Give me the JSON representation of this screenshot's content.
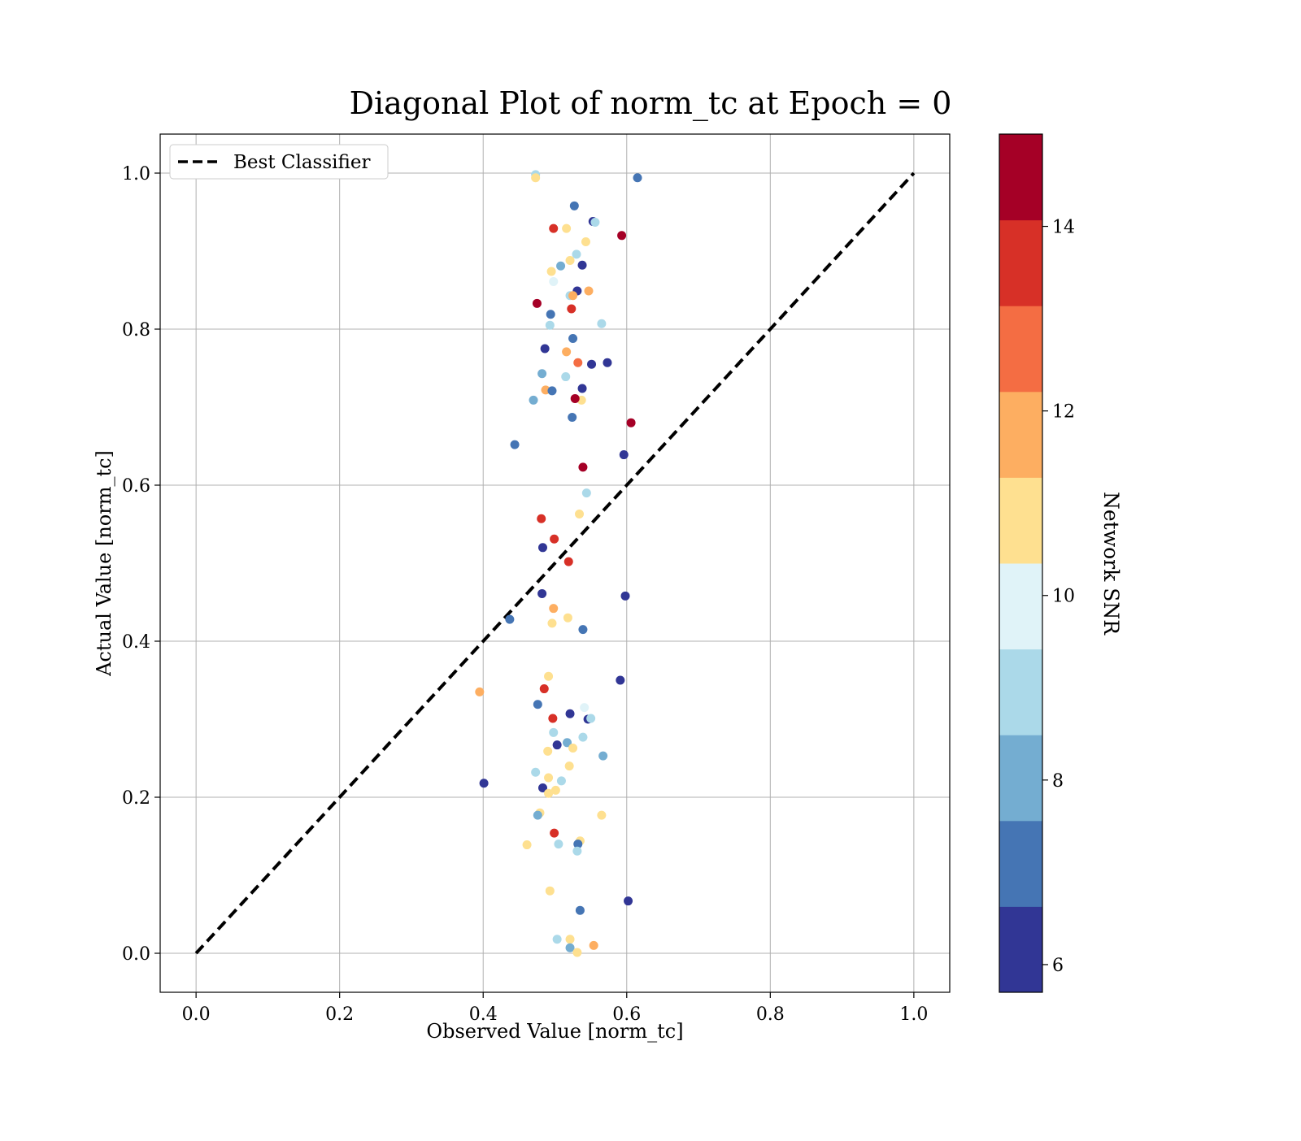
{
  "chart_data": {
    "type": "scatter",
    "title": "Diagonal Plot of norm_tc at Epoch = 0",
    "xlabel": "Observed Value [norm_tc]",
    "ylabel": "Actual Value [norm_tc]",
    "xlim": [
      -0.05,
      1.05
    ],
    "ylim": [
      -0.05,
      1.05
    ],
    "xticks": [
      0.0,
      0.2,
      0.4,
      0.6,
      0.8,
      1.0
    ],
    "yticks": [
      0.0,
      0.2,
      0.4,
      0.6,
      0.8,
      1.0
    ],
    "xtick_labels": [
      "0.0",
      "0.2",
      "0.4",
      "0.6",
      "0.8",
      "1.0"
    ],
    "ytick_labels": [
      "0.0",
      "0.2",
      "0.4",
      "0.6",
      "0.8",
      "1.0"
    ],
    "grid": true,
    "legend": {
      "position": "top-left",
      "entries": [
        {
          "label": "Best Classifier",
          "style": "dashed",
          "color": "#000000"
        }
      ]
    },
    "reference_line": {
      "label": "Best Classifier",
      "x": [
        0.0,
        1.0
      ],
      "y": [
        0.0,
        1.0
      ],
      "style": "dashed",
      "color": "#000000"
    },
    "colorbar": {
      "label": "Network SNR",
      "range": [
        5.7,
        15.0
      ],
      "ticks": [
        6,
        8,
        10,
        12,
        14
      ],
      "tick_labels": [
        "6",
        "8",
        "10",
        "12",
        "14"
      ],
      "colors": [
        "#313695",
        "#4575b4",
        "#74add1",
        "#abd9e9",
        "#e0f3f8",
        "#fee090",
        "#fdae61",
        "#f46d43",
        "#d73027",
        "#a50026"
      ]
    },
    "points": [
      {
        "x": 0.473,
        "y": 0.998,
        "snr": 9.0
      },
      {
        "x": 0.473,
        "y": 0.994,
        "snr": 10.6
      },
      {
        "x": 0.615,
        "y": 0.994,
        "snr": 7.2
      },
      {
        "x": 0.527,
        "y": 0.958,
        "snr": 7.2
      },
      {
        "x": 0.553,
        "y": 0.938,
        "snr": 6.2
      },
      {
        "x": 0.556,
        "y": 0.937,
        "snr": 9.0
      },
      {
        "x": 0.498,
        "y": 0.929,
        "snr": 13.5
      },
      {
        "x": 0.516,
        "y": 0.929,
        "snr": 10.6
      },
      {
        "x": 0.593,
        "y": 0.92,
        "snr": 14.6
      },
      {
        "x": 0.543,
        "y": 0.912,
        "snr": 10.6
      },
      {
        "x": 0.53,
        "y": 0.896,
        "snr": 9.0
      },
      {
        "x": 0.521,
        "y": 0.888,
        "snr": 10.6
      },
      {
        "x": 0.538,
        "y": 0.882,
        "snr": 6.2
      },
      {
        "x": 0.508,
        "y": 0.881,
        "snr": 8.0
      },
      {
        "x": 0.495,
        "y": 0.874,
        "snr": 10.6
      },
      {
        "x": 0.498,
        "y": 0.861,
        "snr": 9.8
      },
      {
        "x": 0.531,
        "y": 0.849,
        "snr": 6.2
      },
      {
        "x": 0.547,
        "y": 0.849,
        "snr": 11.6
      },
      {
        "x": 0.521,
        "y": 0.843,
        "snr": 9.0
      },
      {
        "x": 0.525,
        "y": 0.843,
        "snr": 11.6
      },
      {
        "x": 0.475,
        "y": 0.833,
        "snr": 14.6
      },
      {
        "x": 0.523,
        "y": 0.826,
        "snr": 13.5
      },
      {
        "x": 0.494,
        "y": 0.819,
        "snr": 7.2
      },
      {
        "x": 0.565,
        "y": 0.807,
        "snr": 9.0
      },
      {
        "x": 0.493,
        "y": 0.805,
        "snr": 9.0
      },
      {
        "x": 0.525,
        "y": 0.788,
        "snr": 7.2
      },
      {
        "x": 0.486,
        "y": 0.775,
        "snr": 6.2
      },
      {
        "x": 0.516,
        "y": 0.771,
        "snr": 11.6
      },
      {
        "x": 0.532,
        "y": 0.757,
        "snr": 12.6
      },
      {
        "x": 0.551,
        "y": 0.755,
        "snr": 6.2
      },
      {
        "x": 0.573,
        "y": 0.757,
        "snr": 6.2
      },
      {
        "x": 0.482,
        "y": 0.743,
        "snr": 8.0
      },
      {
        "x": 0.515,
        "y": 0.739,
        "snr": 9.0
      },
      {
        "x": 0.538,
        "y": 0.724,
        "snr": 6.2
      },
      {
        "x": 0.487,
        "y": 0.722,
        "snr": 11.6
      },
      {
        "x": 0.496,
        "y": 0.721,
        "snr": 7.2
      },
      {
        "x": 0.537,
        "y": 0.709,
        "snr": 10.6
      },
      {
        "x": 0.528,
        "y": 0.711,
        "snr": 14.6
      },
      {
        "x": 0.47,
        "y": 0.709,
        "snr": 8.0
      },
      {
        "x": 0.524,
        "y": 0.687,
        "snr": 7.2
      },
      {
        "x": 0.606,
        "y": 0.68,
        "snr": 14.6
      },
      {
        "x": 0.444,
        "y": 0.652,
        "snr": 7.2
      },
      {
        "x": 0.596,
        "y": 0.639,
        "snr": 6.2
      },
      {
        "x": 0.539,
        "y": 0.623,
        "snr": 14.6
      },
      {
        "x": 0.544,
        "y": 0.59,
        "snr": 9.0
      },
      {
        "x": 0.534,
        "y": 0.563,
        "snr": 10.6
      },
      {
        "x": 0.481,
        "y": 0.557,
        "snr": 13.5
      },
      {
        "x": 0.499,
        "y": 0.531,
        "snr": 13.5
      },
      {
        "x": 0.483,
        "y": 0.52,
        "snr": 6.2
      },
      {
        "x": 0.519,
        "y": 0.502,
        "snr": 13.5
      },
      {
        "x": 0.482,
        "y": 0.461,
        "snr": 6.2
      },
      {
        "x": 0.598,
        "y": 0.458,
        "snr": 6.2
      },
      {
        "x": 0.498,
        "y": 0.442,
        "snr": 11.6
      },
      {
        "x": 0.518,
        "y": 0.43,
        "snr": 10.6
      },
      {
        "x": 0.437,
        "y": 0.428,
        "snr": 7.2
      },
      {
        "x": 0.496,
        "y": 0.423,
        "snr": 10.6
      },
      {
        "x": 0.539,
        "y": 0.415,
        "snr": 7.2
      },
      {
        "x": 0.491,
        "y": 0.355,
        "snr": 10.6
      },
      {
        "x": 0.591,
        "y": 0.35,
        "snr": 6.2
      },
      {
        "x": 0.395,
        "y": 0.335,
        "snr": 11.6
      },
      {
        "x": 0.485,
        "y": 0.339,
        "snr": 13.5
      },
      {
        "x": 0.476,
        "y": 0.319,
        "snr": 7.2
      },
      {
        "x": 0.541,
        "y": 0.315,
        "snr": 9.8
      },
      {
        "x": 0.521,
        "y": 0.307,
        "snr": 6.2
      },
      {
        "x": 0.497,
        "y": 0.301,
        "snr": 13.5
      },
      {
        "x": 0.546,
        "y": 0.3,
        "snr": 6.2
      },
      {
        "x": 0.55,
        "y": 0.301,
        "snr": 9.0
      },
      {
        "x": 0.498,
        "y": 0.283,
        "snr": 9.0
      },
      {
        "x": 0.539,
        "y": 0.277,
        "snr": 9.0
      },
      {
        "x": 0.517,
        "y": 0.27,
        "snr": 8.0
      },
      {
        "x": 0.503,
        "y": 0.267,
        "snr": 6.2
      },
      {
        "x": 0.525,
        "y": 0.263,
        "snr": 10.6
      },
      {
        "x": 0.49,
        "y": 0.259,
        "snr": 10.6
      },
      {
        "x": 0.567,
        "y": 0.253,
        "snr": 8.0
      },
      {
        "x": 0.52,
        "y": 0.24,
        "snr": 10.6
      },
      {
        "x": 0.473,
        "y": 0.232,
        "snr": 9.0
      },
      {
        "x": 0.491,
        "y": 0.225,
        "snr": 10.6
      },
      {
        "x": 0.509,
        "y": 0.221,
        "snr": 9.0
      },
      {
        "x": 0.401,
        "y": 0.218,
        "snr": 6.2
      },
      {
        "x": 0.483,
        "y": 0.212,
        "snr": 6.2
      },
      {
        "x": 0.501,
        "y": 0.209,
        "snr": 10.6
      },
      {
        "x": 0.491,
        "y": 0.205,
        "snr": 10.6
      },
      {
        "x": 0.479,
        "y": 0.18,
        "snr": 10.6
      },
      {
        "x": 0.476,
        "y": 0.177,
        "snr": 8.0
      },
      {
        "x": 0.565,
        "y": 0.177,
        "snr": 10.6
      },
      {
        "x": 0.499,
        "y": 0.154,
        "snr": 13.5
      },
      {
        "x": 0.535,
        "y": 0.144,
        "snr": 10.6
      },
      {
        "x": 0.532,
        "y": 0.14,
        "snr": 7.2
      },
      {
        "x": 0.461,
        "y": 0.139,
        "snr": 10.6
      },
      {
        "x": 0.505,
        "y": 0.14,
        "snr": 9.0
      },
      {
        "x": 0.531,
        "y": 0.131,
        "snr": 9.0
      },
      {
        "x": 0.493,
        "y": 0.08,
        "snr": 10.6
      },
      {
        "x": 0.602,
        "y": 0.067,
        "snr": 6.2
      },
      {
        "x": 0.535,
        "y": 0.055,
        "snr": 7.2
      },
      {
        "x": 0.503,
        "y": 0.018,
        "snr": 9.0
      },
      {
        "x": 0.521,
        "y": 0.018,
        "snr": 10.6
      },
      {
        "x": 0.554,
        "y": 0.01,
        "snr": 11.6
      },
      {
        "x": 0.521,
        "y": 0.007,
        "snr": 8.0
      },
      {
        "x": 0.531,
        "y": 0.001,
        "snr": 10.6
      }
    ]
  }
}
